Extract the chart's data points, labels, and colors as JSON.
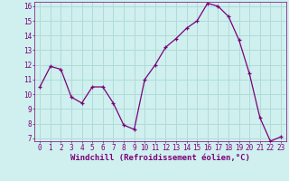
{
  "x": [
    0,
    1,
    2,
    3,
    4,
    5,
    6,
    7,
    8,
    9,
    10,
    11,
    12,
    13,
    14,
    15,
    16,
    17,
    18,
    19,
    20,
    21,
    22,
    23
  ],
  "y": [
    10.5,
    11.9,
    11.7,
    9.8,
    9.4,
    10.5,
    10.5,
    9.4,
    7.9,
    7.6,
    11.0,
    12.0,
    13.2,
    13.8,
    14.5,
    15.0,
    16.2,
    16.0,
    15.3,
    13.7,
    11.4,
    8.4,
    6.8,
    7.1
  ],
  "line_color": "#7b007b",
  "marker_color": "#7b007b",
  "bg_color": "#cff0ee",
  "grid_color": "#b0dbd8",
  "xlabel": "Windchill (Refroidissement éolien,°C)",
  "xlabel_color": "#7b007b",
  "tick_color": "#7b007b",
  "ylim_min": 7,
  "ylim_max": 16,
  "xlim_min": -0.5,
  "xlim_max": 23.5,
  "yticks": [
    7,
    8,
    9,
    10,
    11,
    12,
    13,
    14,
    15,
    16
  ],
  "xtick_labels": [
    "0",
    "1",
    "2",
    "3",
    "4",
    "5",
    "6",
    "7",
    "8",
    "9",
    "10",
    "11",
    "12",
    "13",
    "14",
    "15",
    "16",
    "17",
    "18",
    "19",
    "20",
    "21",
    "22",
    "23"
  ],
  "tick_fontsize": 5.5,
  "xlabel_fontsize": 6.5
}
